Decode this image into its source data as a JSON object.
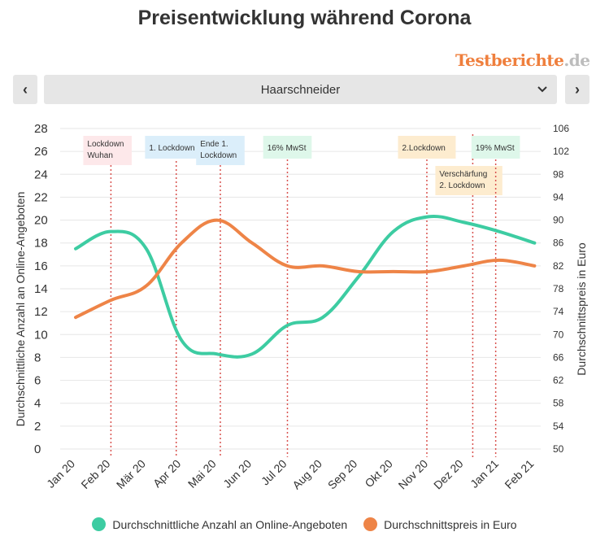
{
  "title": "Preisentwicklung während Corona",
  "brand": {
    "part1": "Testberichte",
    "part2": ".de"
  },
  "selector": {
    "value": "Haarschneider",
    "prev_label": "‹",
    "next_label": "›"
  },
  "colors": {
    "green": "#3dcca2",
    "orange": "#ee8447",
    "grid": "#e6e6e6",
    "event_line": "#d9534f"
  },
  "chart_data": {
    "type": "line",
    "categories": [
      "Jan 20",
      "Feb 20",
      "Mär 20",
      "Apr 20",
      "Mai 20",
      "Jun 20",
      "Jul 20",
      "Aug 20",
      "Sep 20",
      "Okt 20",
      "Nov 20",
      "Dez 20",
      "Jan 21",
      "Feb 21"
    ],
    "ylabel_left": "Durchschnittliche Anzahl an Online-Angeboten",
    "ylabel_right": "Durchschnittspreis in Euro",
    "y_left": {
      "min": 0,
      "max": 28,
      "ticks": [
        "0",
        "2",
        "4",
        "6",
        "8",
        "10",
        "12",
        "14",
        "16",
        "18",
        "20",
        "22",
        "24",
        "26",
        "28"
      ]
    },
    "y_right": {
      "min": 50,
      "max": 106,
      "ticks": [
        "50",
        "54",
        "58",
        "62",
        "66",
        "70",
        "74",
        "78",
        "82",
        "86",
        "90",
        "94",
        "98",
        "102",
        "106"
      ]
    },
    "series": [
      {
        "name": "Durchschnittliche Anzahl an Online-Angeboten",
        "axis": "left",
        "color": "#3dcca2",
        "values": [
          17.5,
          19.0,
          17.5,
          9.5,
          8.3,
          8.3,
          10.8,
          11.5,
          15.0,
          19.0,
          20.3,
          19.8,
          19.0,
          18.0
        ]
      },
      {
        "name": "Durchschnittspreis in Euro",
        "axis": "right",
        "color": "#ee8447",
        "values": [
          73.0,
          76.0,
          78.5,
          86.0,
          90.0,
          86.0,
          82.0,
          82.0,
          81.0,
          81.0,
          81.0,
          82.0,
          83.0,
          82.0
        ]
      }
    ],
    "annotations": [
      {
        "label": [
          "Lockdown",
          "Wuhan"
        ],
        "x": 1.0,
        "bg": "#fde8ea"
      },
      {
        "label": [
          "1. Lockdown"
        ],
        "x": 2.85,
        "bg": "#dbeefa"
      },
      {
        "label": [
          "Ende 1.",
          "Lockdown"
        ],
        "x": 4.1,
        "bg": "#dbeefa"
      },
      {
        "label": [
          "16% MwSt"
        ],
        "x": 6.0,
        "bg": "#def7ea"
      },
      {
        "label": [
          "2.Lockdown"
        ],
        "x": 9.95,
        "bg": "#fdeccf"
      },
      {
        "label": [
          "Verschärfung",
          "2. Lockdown"
        ],
        "x": 11.25,
        "bg": "#fdeccf"
      },
      {
        "label": [
          "19% MwSt"
        ],
        "x": 11.9,
        "bg": "#def7ea"
      }
    ],
    "grid": true,
    "legend": "bottom"
  }
}
